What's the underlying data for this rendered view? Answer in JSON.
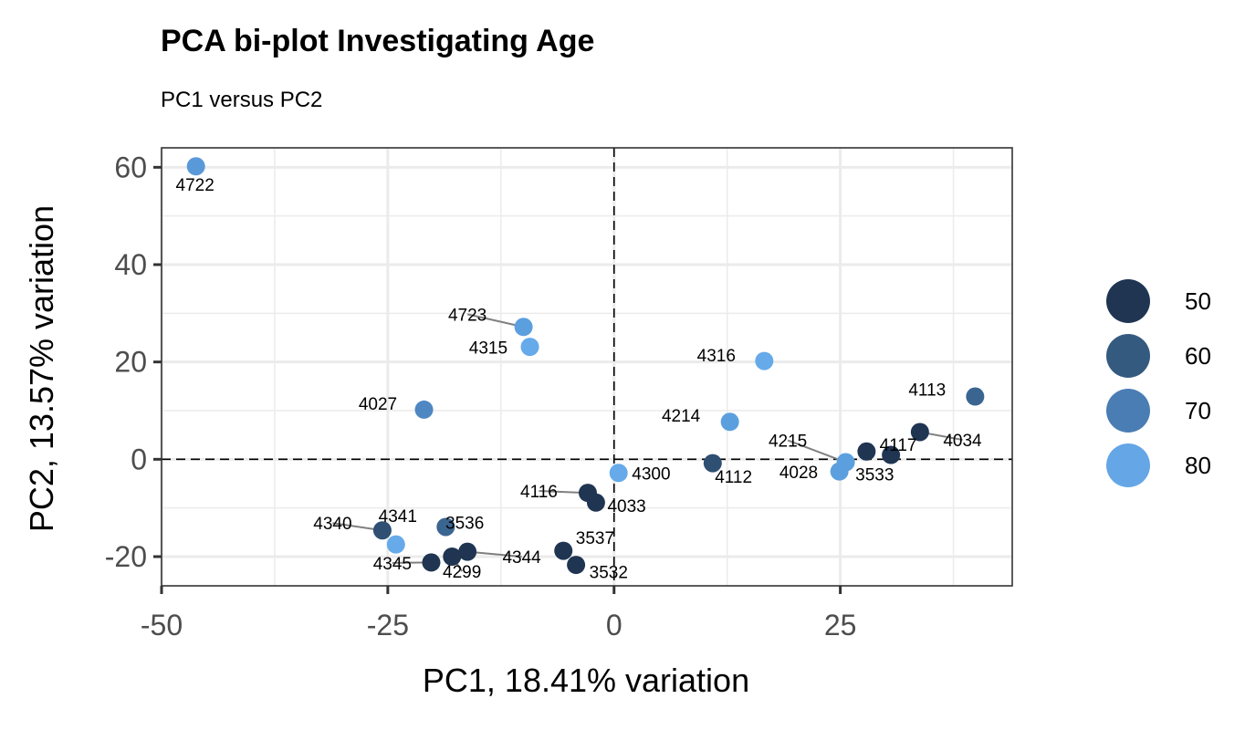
{
  "chart_data": {
    "type": "scatter",
    "title": "PCA bi-plot Investigating Age",
    "subtitle": "PC1 versus PC2",
    "xlabel": "PC1, 18.41% variation",
    "ylabel": "PC2, 13.57% variation",
    "xlim": [
      -50,
      44
    ],
    "ylim": [
      -26,
      64
    ],
    "xticks": [
      -50,
      -25,
      0,
      25
    ],
    "xtick_labels": [
      "-50",
      "-25",
      "0",
      "25"
    ],
    "yticks": [
      -20,
      0,
      20,
      40,
      60
    ],
    "ytick_labels": [
      "-20",
      "0",
      "20",
      "40",
      "60"
    ],
    "reference_lines": {
      "x": 0,
      "y": 0
    },
    "grid": true,
    "legend": {
      "position": "right",
      "entries": [
        {
          "label": "50",
          "color": "#1f3552"
        },
        {
          "label": "60",
          "color": "#355a80"
        },
        {
          "label": "70",
          "color": "#4a7db3"
        },
        {
          "label": "80",
          "color": "#64a6e6"
        }
      ]
    },
    "points": [
      {
        "label": "4722",
        "x": -46.2,
        "y": 60.2,
        "age": 75,
        "color": "#5a99d9",
        "label_at": [
          -46.3,
          56.5
        ]
      },
      {
        "label": "4723",
        "x": -10.0,
        "y": 27.2,
        "age": 78,
        "color": "#5c9fde",
        "label_at": [
          -16.2,
          29.8
        ],
        "line": true
      },
      {
        "label": "4315",
        "x": -9.3,
        "y": 23.1,
        "age": 82,
        "color": "#66aaea",
        "label_at": [
          -13.9,
          23.0
        ]
      },
      {
        "label": "4027",
        "x": -21.0,
        "y": 10.2,
        "age": 73,
        "color": "#4f87c3",
        "label_at": [
          -26.1,
          11.5
        ]
      },
      {
        "label": "4316",
        "x": 16.6,
        "y": 20.2,
        "age": 82,
        "color": "#66aaea",
        "label_at": [
          11.3,
          21.4
        ]
      },
      {
        "label": "4214",
        "x": 12.8,
        "y": 7.7,
        "age": 78,
        "color": "#5c9fde",
        "label_at": [
          7.4,
          9.1
        ]
      },
      {
        "label": "4113",
        "x": 39.9,
        "y": 12.9,
        "age": 62,
        "color": "#3a6591",
        "label_at": [
          34.6,
          14.4
        ]
      },
      {
        "label": "4034",
        "x": 33.8,
        "y": 5.6,
        "age": 50,
        "color": "#1f3552",
        "label_at": [
          38.5,
          4.0
        ],
        "line": true
      },
      {
        "label": "4117",
        "x": 30.6,
        "y": 0.9,
        "age": 50,
        "color": "#1f3552",
        "label_at": [
          31.4,
          3.1
        ]
      },
      {
        "label": "3533",
        "x": 27.9,
        "y": 1.6,
        "age": 50,
        "color": "#1f3552",
        "label_at": [
          28.8,
          -3.0
        ]
      },
      {
        "label": "4215",
        "x": 25.6,
        "y": -0.6,
        "age": 80,
        "color": "#5c9fde",
        "label_at": [
          19.2,
          3.9
        ],
        "line": true
      },
      {
        "label": "4028",
        "x": 24.9,
        "y": -2.5,
        "age": 80,
        "color": "#5c9fde",
        "label_at": [
          20.4,
          -2.6
        ]
      },
      {
        "label": "4112",
        "x": 10.9,
        "y": -0.8,
        "age": 58,
        "color": "#2f4f73",
        "label_at": [
          13.2,
          -3.5
        ]
      },
      {
        "label": "4300",
        "x": 0.5,
        "y": -2.8,
        "age": 82,
        "color": "#66aaea",
        "label_at": [
          4.1,
          -2.8
        ]
      },
      {
        "label": "4116",
        "x": -2.9,
        "y": -6.9,
        "age": 50,
        "color": "#1f3552",
        "label_at": [
          -8.3,
          -6.5
        ],
        "line": true
      },
      {
        "label": "4033",
        "x": -2.0,
        "y": -8.9,
        "age": 50,
        "color": "#1f3552",
        "label_at": [
          1.4,
          -9.5
        ]
      },
      {
        "label": "3537",
        "x": -5.6,
        "y": -18.8,
        "age": 50,
        "color": "#1f3552",
        "label_at": [
          -2.1,
          -16.1
        ]
      },
      {
        "label": "3532",
        "x": -4.2,
        "y": -21.7,
        "age": 50,
        "color": "#1f3552",
        "label_at": [
          -0.6,
          -23.1
        ]
      },
      {
        "label": "4344",
        "x": -16.2,
        "y": -19.0,
        "age": 50,
        "color": "#1f3552",
        "label_at": [
          -10.2,
          -20.0
        ],
        "line": true
      },
      {
        "label": "4299",
        "x": -17.9,
        "y": -20.0,
        "age": 50,
        "color": "#1f3552",
        "label_at": [
          -16.8,
          -23.0
        ],
        "line": true
      },
      {
        "label": "3536",
        "x": -18.6,
        "y": -13.9,
        "age": 62,
        "color": "#3a6591",
        "label_at": [
          -16.5,
          -13.0
        ]
      },
      {
        "label": "4340",
        "x": -25.6,
        "y": -14.6,
        "age": 58,
        "color": "#2f4f73",
        "label_at": [
          -31.1,
          -13.1
        ],
        "line": true
      },
      {
        "label": "4341",
        "x": -24.1,
        "y": -17.5,
        "age": 82,
        "color": "#66aaea",
        "label_at": [
          -23.9,
          -11.6
        ]
      },
      {
        "label": "4345",
        "x": -20.2,
        "y": -21.2,
        "age": 50,
        "color": "#1f3552",
        "label_at": [
          -24.5,
          -21.3
        ],
        "line": true
      }
    ]
  }
}
